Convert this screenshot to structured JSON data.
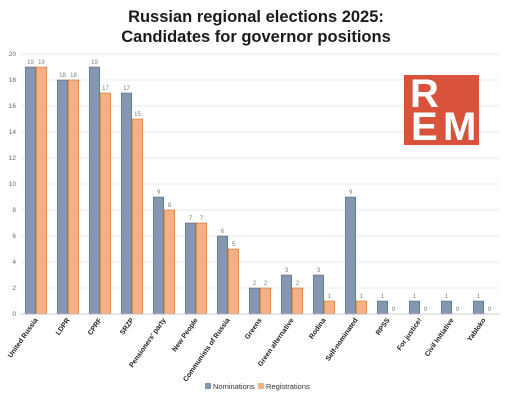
{
  "chart_data": {
    "type": "bar",
    "title": [
      "Russian regional elections 2025:",
      "Candidates for governor positions"
    ],
    "categories": [
      "United Russia",
      "LDPR",
      "CPRF",
      "SRZP",
      "Pensioners' party",
      "New People",
      "Communists of Russia",
      "Greens",
      "Green alternative",
      "Rodina",
      "Self-nominated",
      "RPSS",
      "For justice!",
      "Civil Initiative",
      "Yabloko"
    ],
    "series": [
      {
        "name": "Nominations",
        "color": "#8497b0",
        "values": [
          19,
          18,
          19,
          17,
          9,
          7,
          6,
          2,
          3,
          3,
          9,
          1,
          1,
          1,
          1
        ]
      },
      {
        "name": "Registrations",
        "color": "#f4b183",
        "values": [
          19,
          18,
          17,
          15,
          8,
          7,
          5,
          2,
          2,
          1,
          1,
          0,
          0,
          0,
          0
        ]
      }
    ],
    "ylim": [
      0,
      20
    ],
    "yticks": [
      0,
      2,
      4,
      6,
      8,
      10,
      12,
      14,
      16,
      18,
      20
    ],
    "grid": true,
    "legend_position": "bottom"
  },
  "logo": {
    "letters": [
      "R",
      "E",
      "M"
    ],
    "color": "#d9533c"
  }
}
